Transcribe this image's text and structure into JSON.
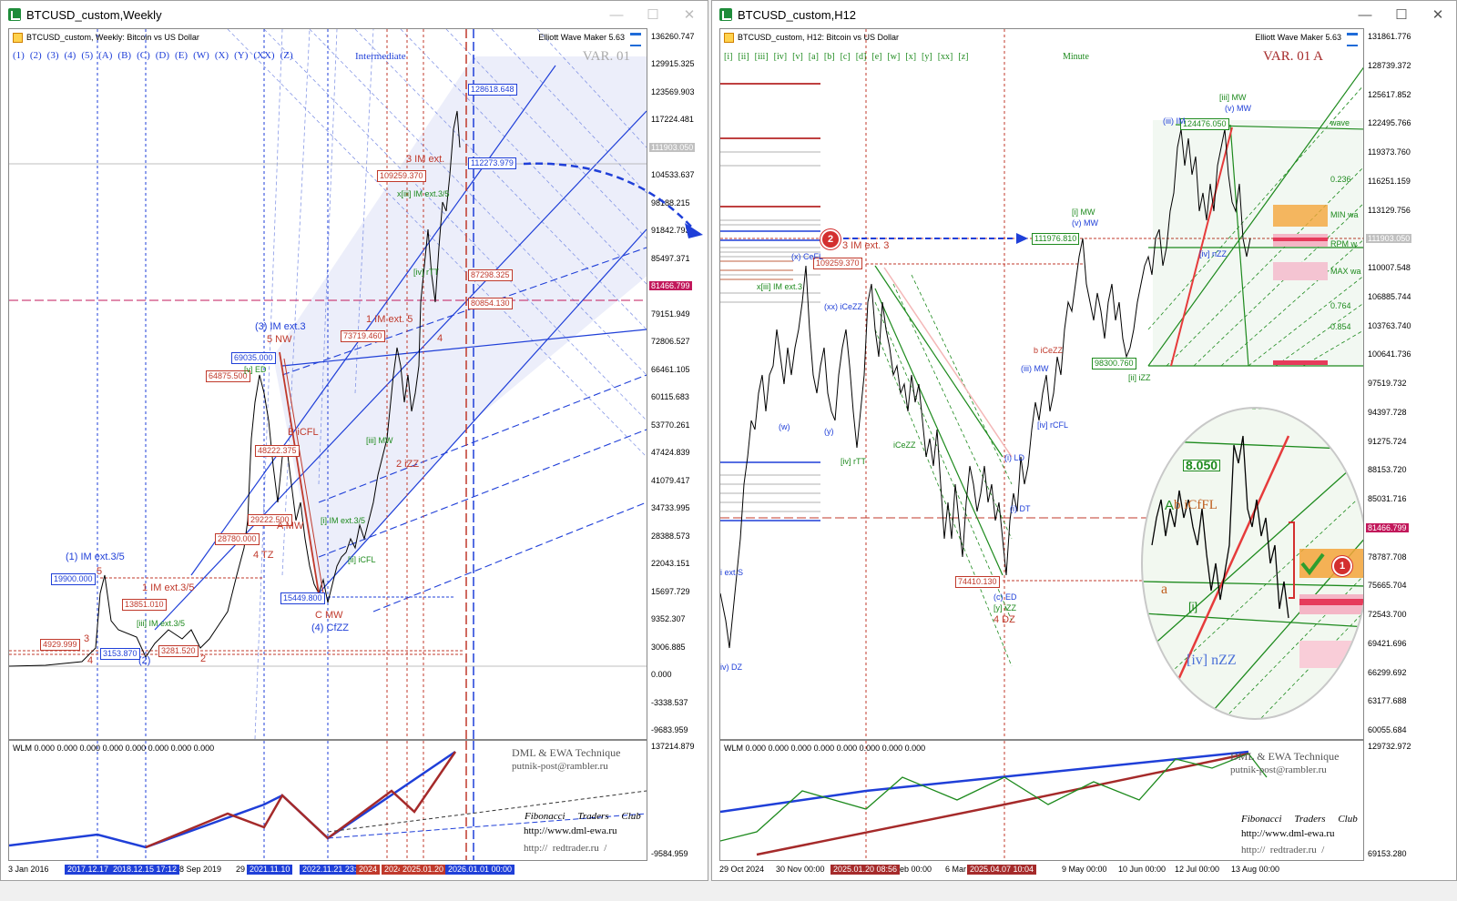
{
  "left": {
    "window_title": "BTCUSD_custom,Weekly",
    "header": "BTCUSD_custom, Weekly:  Bitcoin vs US Dollar",
    "ewm": "Elliott Wave Maker 5.63",
    "var_label": "VAR. 01",
    "degree_label": "Intermediate",
    "wave_buttons": [
      "(1)",
      "(2)",
      "(3)",
      "(4)",
      "(5)",
      "(A)",
      "(B)",
      "(C)",
      "(D)",
      "(E)",
      "(W)",
      "(X)",
      "(Y)",
      "(XX)",
      "(Z)"
    ],
    "price_scale": [
      "136260.747",
      "129915.325",
      "123569.903",
      "117224.481",
      "111903.050",
      "104533.637",
      "98188.215",
      "91842.793",
      "85497.371",
      "81466.799",
      "79151.949",
      "72806.527",
      "66461.105",
      "60115.683",
      "53770.261",
      "47424.839",
      "41079.417",
      "34733.995",
      "28388.573",
      "22043.151",
      "15697.729",
      "9352.307",
      "3006.885",
      "0.000",
      "-3338.537",
      "-9683.959"
    ],
    "current_price": "111903.050",
    "line_price": "81466.799",
    "boxes": {
      "b1": "128618.648",
      "b2": "112273.979",
      "b3": "109259.370",
      "b4": "87298.325",
      "b5": "80854.130",
      "b6": "73719.460",
      "b7": "69035.000",
      "b8": "64875.500",
      "b9": "48222.375",
      "b10": "29222.500",
      "b11": "28780.000",
      "b12": "19900.000",
      "b13": "15449.800",
      "b14": "13851.010",
      "b15": "4929.999",
      "b16": "3153.870",
      "b17": "3281.520"
    },
    "wave_labels": {
      "w1": "3 IM ext.",
      "w2": "(3) IM ext.3",
      "w3": "5 NW",
      "w4": "1 IM ext. 5",
      "w5": "(1) IM ext.3/5",
      "w6": "1 IM ext.3/5",
      "w7": "B iCFL",
      "w8": "A MW",
      "w9": "4 TZ",
      "w10": "C MW",
      "w11": "(4) CfZZ",
      "w12": "2 iZZ",
      "w13": "[i] IM ext.3/5",
      "w14": "[ii] iCFL",
      "w15": "[iii] MW",
      "w16": "x[iii] IM ext.3/5",
      "w17": "[iii] IM ext.3/5",
      "w18": "4",
      "w19": "2",
      "w20": "(2)",
      "w21": "3",
      "w22": "4",
      "w23": "5",
      "w24": "[v] ED",
      "w25": "[iv] rTT"
    },
    "time_scale": [
      "3 Jan 2016",
      "2017.12.17",
      "2018.12.15 17:12",
      "8 Sep 2019",
      "29",
      "2021.11.10",
      "2022.11.21 23:5",
      "2024",
      "2024",
      "2025.01.20",
      "2026.01.01 00:00"
    ],
    "indicator": {
      "header": "WLM 0.000 0.000 0.000 0.000 0.000 0.000 0.000 0.000",
      "scale_top": "137214.879",
      "scale_bottom": "-9584.959",
      "credit1": "DML & EWA Technique",
      "credit2": "putnik-post@rambler.ru",
      "club": "Fibonacci     Traders     Club",
      "url1": "http://www.dml-ewa.ru",
      "url2": "http://  redtrader.ru  /"
    }
  },
  "right": {
    "window_title": "BTCUSD_custom,H12",
    "header": "BTCUSD_custom, H12:  Bitcoin vs US Dollar",
    "ewm": "Elliott Wave Maker 5.63",
    "var_label": "VAR. 01 A",
    "degree_label": "Minute",
    "wave_buttons": [
      "[i]",
      "[ii]",
      "[iii]",
      "[iv]",
      "[v]",
      "[a]",
      "[b]",
      "[c]",
      "[d]",
      "[e]",
      "[w]",
      "[x]",
      "[y]",
      "[xx]",
      "[z]"
    ],
    "price_scale": [
      "131861.776",
      "128739.372",
      "125617.852",
      "122495.766",
      "119373.760",
      "116251.159",
      "113129.756",
      "111903.050",
      "110007.548",
      "106885.744",
      "103763.740",
      "100641.736",
      "97519.732",
      "94397.728",
      "91275.724",
      "88153.720",
      "85031.716",
      "81466.799",
      "78787.708",
      "75665.704",
      "72543.700",
      "69421.696",
      "66299.692",
      "63177.688",
      "60055.684"
    ],
    "current_price": "111903.050",
    "line_price": "81466.799",
    "boxes": {
      "r1": "124476.050",
      "r2": "111976.810",
      "r3": "109259.370",
      "r4": "98300.760",
      "r5": "74410.130"
    },
    "wave_labels": {
      "m1": "[iii] MW",
      "m2": "(v) MW",
      "m3": "(iii) IM",
      "m4": "[i] MW",
      "m5": "(v) MW",
      "m6": "3 IM ext. 3",
      "m7": "(x) CeFL",
      "m8": "x[iii] IM ext.3",
      "m9": "(xx) iCeZZ",
      "m10": "[iv] nZZ",
      "m11": "[ii] iZZ",
      "m12": "b iCeZZ",
      "m13": "(iii) MW",
      "m14": "[iv] rCFL",
      "m15": "(i) LD",
      "m16": "(i) DT",
      "m17": "(c) ED",
      "m18": "[y] iZZ",
      "m19": "4 DZ",
      "m20": "[iv] rTT",
      "m21": "iv) DZ",
      "m22": "(w)",
      "m23": "(y)",
      "m24": "iCeZZ",
      "m25": "i ext.S",
      "m26": "wave",
      "m27": "MIN wa",
      "m28": "MAX wa",
      "m29": "RPM w",
      "m30": "0.236",
      "m31": "0.764",
      "m32": "0.854",
      "m33": "A",
      "m34": "b iCfFL",
      "m35": "[iv] nZZ",
      "m36": "a",
      "m37": "[i]"
    },
    "zoom_price": "8.050",
    "markers": {
      "one": "1",
      "two": "2"
    },
    "time_scale": [
      "29 Oct 2024",
      "30 Nov 00:00",
      "2025.01.20 08:56",
      "eb 00:00",
      "6 Mar",
      "2025.04.07 10:04",
      "9 May 00:00",
      "10 Jun 00:00",
      "12 Jul 00:00",
      "13 Aug 00:00"
    ],
    "indicator": {
      "header": "WLM 0.000 0.000 0.000 0.000 0.000 0.000 0.000 0.000",
      "scale_top": "129732.972",
      "scale_bottom": "69153.280",
      "credit1": "DML & EWA Technique",
      "credit2": "putnik-post@rambler.ru",
      "club": "Fibonacci     Traders     Club",
      "url1": "http://www.dml-ewa.ru",
      "url2": "http://  redtrader.ru  /"
    }
  },
  "colors": {
    "blue": "#1f3fd8",
    "red": "#c0392b",
    "green": "#1d8a1d",
    "magenta": "#c2185b",
    "orange": "#f4a53a"
  }
}
